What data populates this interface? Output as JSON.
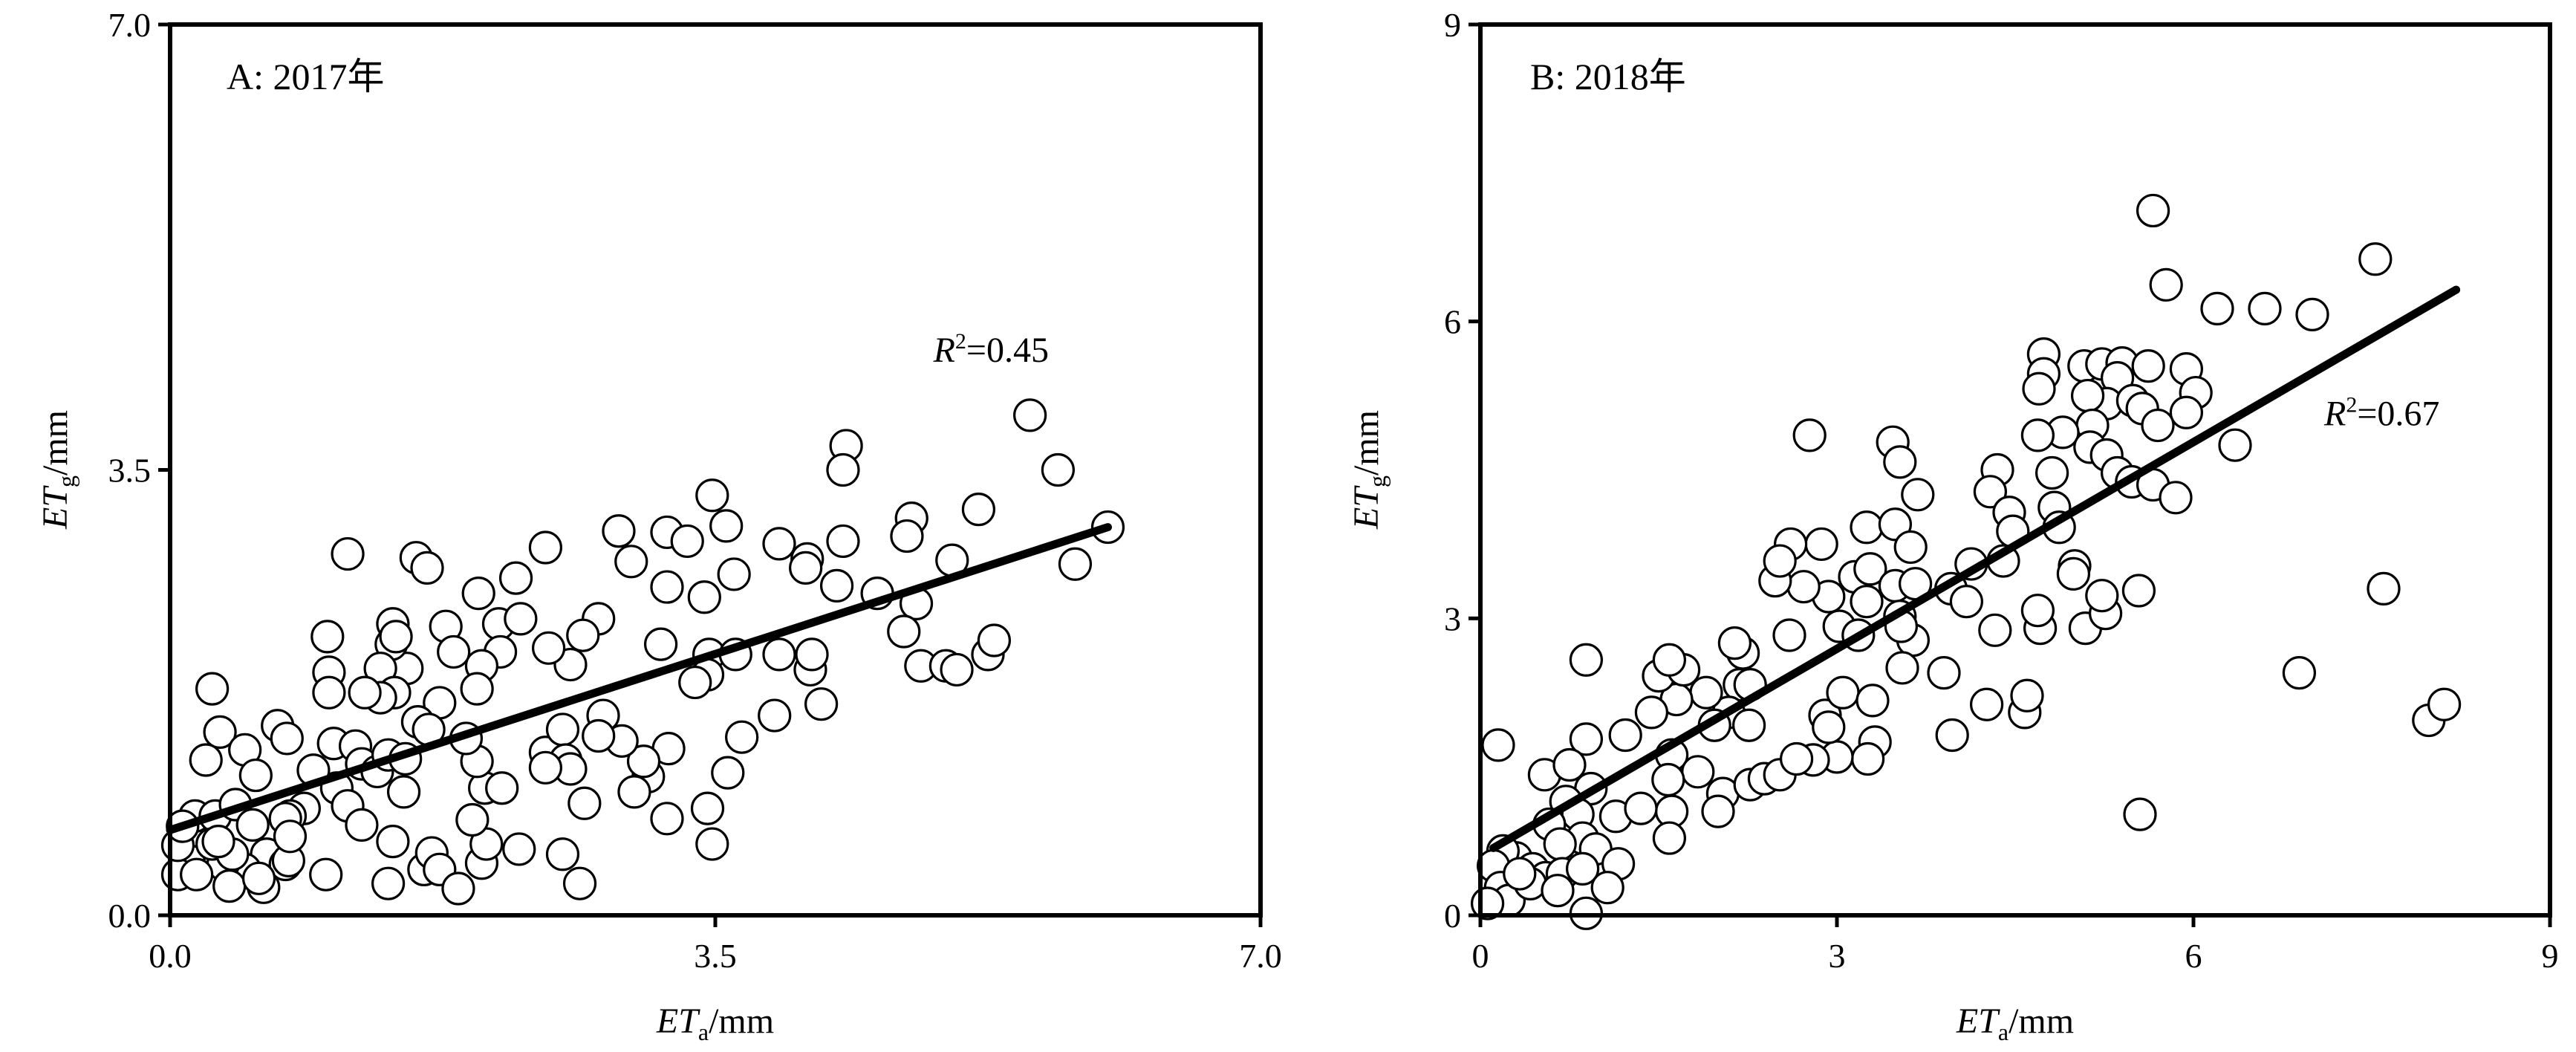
{
  "chart_data": [
    {
      "type": "scatter",
      "title": "A: 2017年",
      "xlabel": {
        "main": "ET",
        "sub": "a",
        "unit": "/mm"
      },
      "ylabel": {
        "main": "ET",
        "sub": "g",
        "unit": "/mm"
      },
      "xlim": [
        0,
        7.0
      ],
      "ylim": [
        0,
        7.0
      ],
      "xticks": [
        "0.0",
        "3.5",
        "7.0"
      ],
      "yticks": [
        "0.0",
        "3.5",
        "7.0"
      ],
      "tick_values": [
        0,
        3.5,
        7.0
      ],
      "grid": false,
      "annotation": {
        "main": "R",
        "sup": "2",
        "rest": "=0.45",
        "at": [
          4.9,
          4.35
        ]
      },
      "fit_line": [
        [
          0,
          0.67
        ],
        [
          6.02,
          3.05
        ]
      ],
      "points": [
        [
          5.52,
          3.93
        ],
        [
          5.7,
          3.5
        ],
        [
          4.34,
          3.69
        ],
        [
          4.32,
          3.5
        ],
        [
          3.48,
          3.3
        ],
        [
          5.81,
          2.76
        ],
        [
          6.02,
          3.05
        ],
        [
          5.19,
          3.19
        ],
        [
          4.76,
          3.12
        ],
        [
          4.73,
          2.98
        ],
        [
          4.32,
          2.94
        ],
        [
          3.91,
          2.92
        ],
        [
          3.57,
          3.06
        ],
        [
          3.19,
          3.01
        ],
        [
          3.32,
          2.94
        ],
        [
          2.88,
          3.02
        ],
        [
          2.41,
          2.89
        ],
        [
          1.14,
          2.84
        ],
        [
          1.58,
          2.81
        ],
        [
          1.65,
          2.73
        ],
        [
          1.98,
          2.53
        ],
        [
          2.22,
          2.65
        ],
        [
          2.75,
          2.33
        ],
        [
          2.96,
          2.78
        ],
        [
          3.19,
          2.58
        ],
        [
          3.43,
          2.5
        ],
        [
          3.62,
          2.68
        ],
        [
          4.09,
          2.8
        ],
        [
          4.08,
          2.73
        ],
        [
          4.28,
          2.59
        ],
        [
          4.54,
          2.53
        ],
        [
          4.79,
          2.45
        ],
        [
          5.02,
          2.79
        ],
        [
          4.71,
          2.23
        ],
        [
          4.82,
          1.96
        ],
        [
          4.98,
          1.96
        ],
        [
          5.05,
          1.93
        ],
        [
          5.25,
          2.05
        ],
        [
          5.29,
          2.16
        ],
        [
          3.15,
          2.13
        ],
        [
          3.46,
          2.05
        ],
        [
          3.45,
          1.89
        ],
        [
          3.63,
          2.05
        ],
        [
          3.37,
          1.83
        ],
        [
          3.91,
          2.05
        ],
        [
          4.11,
          1.93
        ],
        [
          4.12,
          2.05
        ],
        [
          4.18,
          1.66
        ],
        [
          3.88,
          1.57
        ],
        [
          3.67,
          1.4
        ],
        [
          3.58,
          1.12
        ],
        [
          3.45,
          0.84
        ],
        [
          3.48,
          0.56
        ],
        [
          3.19,
          0.76
        ],
        [
          3.2,
          1.31
        ],
        [
          3.07,
          1.09
        ],
        [
          3.04,
          1.21
        ],
        [
          2.9,
          1.37
        ],
        [
          2.78,
          1.57
        ],
        [
          2.65,
          2.2
        ],
        [
          2.57,
          1.97
        ],
        [
          2.43,
          2.1
        ],
        [
          2.11,
          2.29
        ],
        [
          2.25,
          2.33
        ],
        [
          2.12,
          2.07
        ],
        [
          2.0,
          1.96
        ],
        [
          1.97,
          1.78
        ],
        [
          1.77,
          2.27
        ],
        [
          1.82,
          2.07
        ],
        [
          1.52,
          1.94
        ],
        [
          1.42,
          2.13
        ],
        [
          1.43,
          2.29
        ],
        [
          1.45,
          2.19
        ],
        [
          1.35,
          1.94
        ],
        [
          1.44,
          1.75
        ],
        [
          1.35,
          1.71
        ],
        [
          1.73,
          1.67
        ],
        [
          1.59,
          1.52
        ],
        [
          1.66,
          1.46
        ],
        [
          1.25,
          1.75
        ],
        [
          1.01,
          2.19
        ],
        [
          1.02,
          1.91
        ],
        [
          1.02,
          1.75
        ],
        [
          0.27,
          1.78
        ],
        [
          0.32,
          1.44
        ],
        [
          0.23,
          1.22
        ],
        [
          0.48,
          1.3
        ],
        [
          0.69,
          1.49
        ],
        [
          0.75,
          1.39
        ],
        [
          0.55,
          1.1
        ],
        [
          1.05,
          1.35
        ],
        [
          1.19,
          1.33
        ],
        [
          1.23,
          1.19
        ],
        [
          1.07,
          1.0
        ],
        [
          0.92,
          1.14
        ],
        [
          0.86,
          0.84
        ],
        [
          0.77,
          0.78
        ],
        [
          1.14,
          0.86
        ],
        [
          1.23,
          0.71
        ],
        [
          1.43,
          0.58
        ],
        [
          1.4,
          0.25
        ],
        [
          1.63,
          0.36
        ],
        [
          1.68,
          0.49
        ],
        [
          1.73,
          0.36
        ],
        [
          1.85,
          0.21
        ],
        [
          2.0,
          0.41
        ],
        [
          2.03,
          0.56
        ],
        [
          1.94,
          0.75
        ],
        [
          2.02,
          1.0
        ],
        [
          1.97,
          1.21
        ],
        [
          1.9,
          1.39
        ],
        [
          2.13,
          1.0
        ],
        [
          2.24,
          0.52
        ],
        [
          2.41,
          1.28
        ],
        [
          2.52,
          1.46
        ],
        [
          2.54,
          1.22
        ],
        [
          2.57,
          1.15
        ],
        [
          2.66,
          0.88
        ],
        [
          2.52,
          0.48
        ],
        [
          2.63,
          0.25
        ],
        [
          2.41,
          1.16
        ],
        [
          2.98,
          0.97
        ],
        [
          2.75,
          1.41
        ],
        [
          0.62,
          0.48
        ],
        [
          0.6,
          0.22
        ],
        [
          0.74,
          0.4
        ],
        [
          1.0,
          0.32
        ],
        [
          0.76,
          0.43
        ],
        [
          0.42,
          0.32
        ],
        [
          0.48,
          0.36
        ],
        [
          0.34,
          0.4
        ],
        [
          0.15,
          0.62
        ],
        [
          0.12,
          0.43
        ],
        [
          0.05,
          0.32
        ],
        [
          0.16,
          0.78
        ],
        [
          0.29,
          0.78
        ],
        [
          0.42,
          0.87
        ],
        [
          0.53,
          0.71
        ],
        [
          0.74,
          0.76
        ],
        [
          0.77,
          0.62
        ],
        [
          0.27,
          0.56
        ],
        [
          0.38,
          0.23
        ],
        [
          0.4,
          0.48
        ],
        [
          0.17,
          0.32
        ],
        [
          0.31,
          0.58
        ],
        [
          0.57,
          0.29
        ],
        [
          1.33,
          1.13
        ],
        [
          1.4,
          1.26
        ],
        [
          1.51,
          1.23
        ],
        [
          1.5,
          0.97
        ],
        [
          0.05,
          0.55
        ],
        [
          0.08,
          0.7
        ]
      ]
    },
    {
      "type": "scatter",
      "title": "B: 2018年",
      "xlabel": {
        "main": "ET",
        "sub": "a",
        "unit": "/mm"
      },
      "ylabel": {
        "main": "ET",
        "sub": "g",
        "unit": "/mm"
      },
      "xlim": [
        0,
        9
      ],
      "ylim": [
        0,
        9
      ],
      "xticks": [
        "0",
        "3",
        "6",
        "9"
      ],
      "yticks": [
        "0",
        "3",
        "6",
        "9"
      ],
      "tick_values": [
        0,
        3,
        6,
        9
      ],
      "grid": false,
      "annotation": {
        "main": "R",
        "sup": "2",
        "rest": "=0.67",
        "at": [
          7.1,
          4.95
        ]
      },
      "fit_line": [
        [
          0.11,
          0.68
        ],
        [
          8.21,
          6.32
        ]
      ],
      "points": [
        [
          5.66,
          7.12
        ],
        [
          7.53,
          6.63
        ],
        [
          5.77,
          6.37
        ],
        [
          6.2,
          6.13
        ],
        [
          6.6,
          6.13
        ],
        [
          7.0,
          6.07
        ],
        [
          4.74,
          5.67
        ],
        [
          4.74,
          5.47
        ],
        [
          4.7,
          5.32
        ],
        [
          5.08,
          5.55
        ],
        [
          5.23,
          5.57
        ],
        [
          5.4,
          5.58
        ],
        [
          5.62,
          5.55
        ],
        [
          5.94,
          5.52
        ],
        [
          6.02,
          5.28
        ],
        [
          5.36,
          5.43
        ],
        [
          5.27,
          5.17
        ],
        [
          5.11,
          5.25
        ],
        [
          5.49,
          5.2
        ],
        [
          5.57,
          5.12
        ],
        [
          5.94,
          5.08
        ],
        [
          5.7,
          4.95
        ],
        [
          5.15,
          4.95
        ],
        [
          4.9,
          4.88
        ],
        [
          4.69,
          4.85
        ],
        [
          2.77,
          4.85
        ],
        [
          3.47,
          4.78
        ],
        [
          3.53,
          4.58
        ],
        [
          5.13,
          4.73
        ],
        [
          5.27,
          4.65
        ],
        [
          5.36,
          4.47
        ],
        [
          5.48,
          4.38
        ],
        [
          5.66,
          4.35
        ],
        [
          5.85,
          4.22
        ],
        [
          6.35,
          4.75
        ],
        [
          4.81,
          4.47
        ],
        [
          4.35,
          4.5
        ],
        [
          3.68,
          4.25
        ],
        [
          4.29,
          4.28
        ],
        [
          4.83,
          4.12
        ],
        [
          4.45,
          4.07
        ],
        [
          4.87,
          3.92
        ],
        [
          4.48,
          3.88
        ],
        [
          2.87,
          3.75
        ],
        [
          2.61,
          3.75
        ],
        [
          3.25,
          3.92
        ],
        [
          3.49,
          3.95
        ],
        [
          4.4,
          3.58
        ],
        [
          4.13,
          3.55
        ],
        [
          3.15,
          3.42
        ],
        [
          3.28,
          3.5
        ],
        [
          3.49,
          3.33
        ],
        [
          3.62,
          3.72
        ],
        [
          3.66,
          3.35
        ],
        [
          3.96,
          3.3
        ],
        [
          4.09,
          3.17
        ],
        [
          3.53,
          3.02
        ],
        [
          3.25,
          3.17
        ],
        [
          2.93,
          3.22
        ],
        [
          2.72,
          3.32
        ],
        [
          3.02,
          2.92
        ],
        [
          3.18,
          2.83
        ],
        [
          3.64,
          2.78
        ],
        [
          3.54,
          2.92
        ],
        [
          3.9,
          2.45
        ],
        [
          4.33,
          2.88
        ],
        [
          4.71,
          2.9
        ],
        [
          4.69,
          3.08
        ],
        [
          5.09,
          2.9
        ],
        [
          5.26,
          3.05
        ],
        [
          5.23,
          3.23
        ],
        [
          5.0,
          3.53
        ],
        [
          4.99,
          3.45
        ],
        [
          5.54,
          3.28
        ],
        [
          7.6,
          3.3
        ],
        [
          6.89,
          2.45
        ],
        [
          7.98,
          1.97
        ],
        [
          8.11,
          2.13
        ],
        [
          5.55,
          1.02
        ],
        [
          3.97,
          1.82
        ],
        [
          3.32,
          1.75
        ],
        [
          3.26,
          1.58
        ],
        [
          3.0,
          1.6
        ],
        [
          2.8,
          1.57
        ],
        [
          2.9,
          2.02
        ],
        [
          2.93,
          1.9
        ],
        [
          3.05,
          2.25
        ],
        [
          3.3,
          2.17
        ],
        [
          3.55,
          2.5
        ],
        [
          4.26,
          2.13
        ],
        [
          4.58,
          2.05
        ],
        [
          4.6,
          2.22
        ],
        [
          2.6,
          2.83
        ],
        [
          2.18,
          2.33
        ],
        [
          2.27,
          2.33
        ],
        [
          2.09,
          2.05
        ],
        [
          2.26,
          1.92
        ],
        [
          1.97,
          1.92
        ],
        [
          1.9,
          2.25
        ],
        [
          1.65,
          2.18
        ],
        [
          1.5,
          2.42
        ],
        [
          1.71,
          2.48
        ],
        [
          1.59,
          2.58
        ],
        [
          1.44,
          2.05
        ],
        [
          1.22,
          1.82
        ],
        [
          1.61,
          1.62
        ],
        [
          1.83,
          1.45
        ],
        [
          1.58,
          1.37
        ],
        [
          1.61,
          1.05
        ],
        [
          1.59,
          0.78
        ],
        [
          2.04,
          1.23
        ],
        [
          2.0,
          1.05
        ],
        [
          2.27,
          1.32
        ],
        [
          2.39,
          1.38
        ],
        [
          2.52,
          1.42
        ],
        [
          2.66,
          1.58
        ],
        [
          2.21,
          2.65
        ],
        [
          2.14,
          2.75
        ],
        [
          2.48,
          3.38
        ],
        [
          2.52,
          3.58
        ],
        [
          0.89,
          1.78
        ],
        [
          0.15,
          1.72
        ],
        [
          0.89,
          2.58
        ],
        [
          0.54,
          1.42
        ],
        [
          0.75,
          1.52
        ],
        [
          0.93,
          1.28
        ],
        [
          0.72,
          1.15
        ],
        [
          1.14,
          1.0
        ],
        [
          1.35,
          1.08
        ],
        [
          0.82,
          1.02
        ],
        [
          0.58,
          0.92
        ],
        [
          0.86,
          0.78
        ],
        [
          0.97,
          0.67
        ],
        [
          1.16,
          0.52
        ],
        [
          1.07,
          0.28
        ],
        [
          0.89,
          0.02
        ],
        [
          0.67,
          0.72
        ],
        [
          0.3,
          0.58
        ],
        [
          0.19,
          0.65
        ],
        [
          0.11,
          0.5
        ],
        [
          0.17,
          0.28
        ],
        [
          0.24,
          0.15
        ],
        [
          0.06,
          0.12
        ],
        [
          0.44,
          0.47
        ],
        [
          0.55,
          0.38
        ],
        [
          0.69,
          0.42
        ],
        [
          0.86,
          0.47
        ],
        [
          0.42,
          0.32
        ],
        [
          0.65,
          0.25
        ],
        [
          0.33,
          0.42
        ]
      ]
    }
  ]
}
